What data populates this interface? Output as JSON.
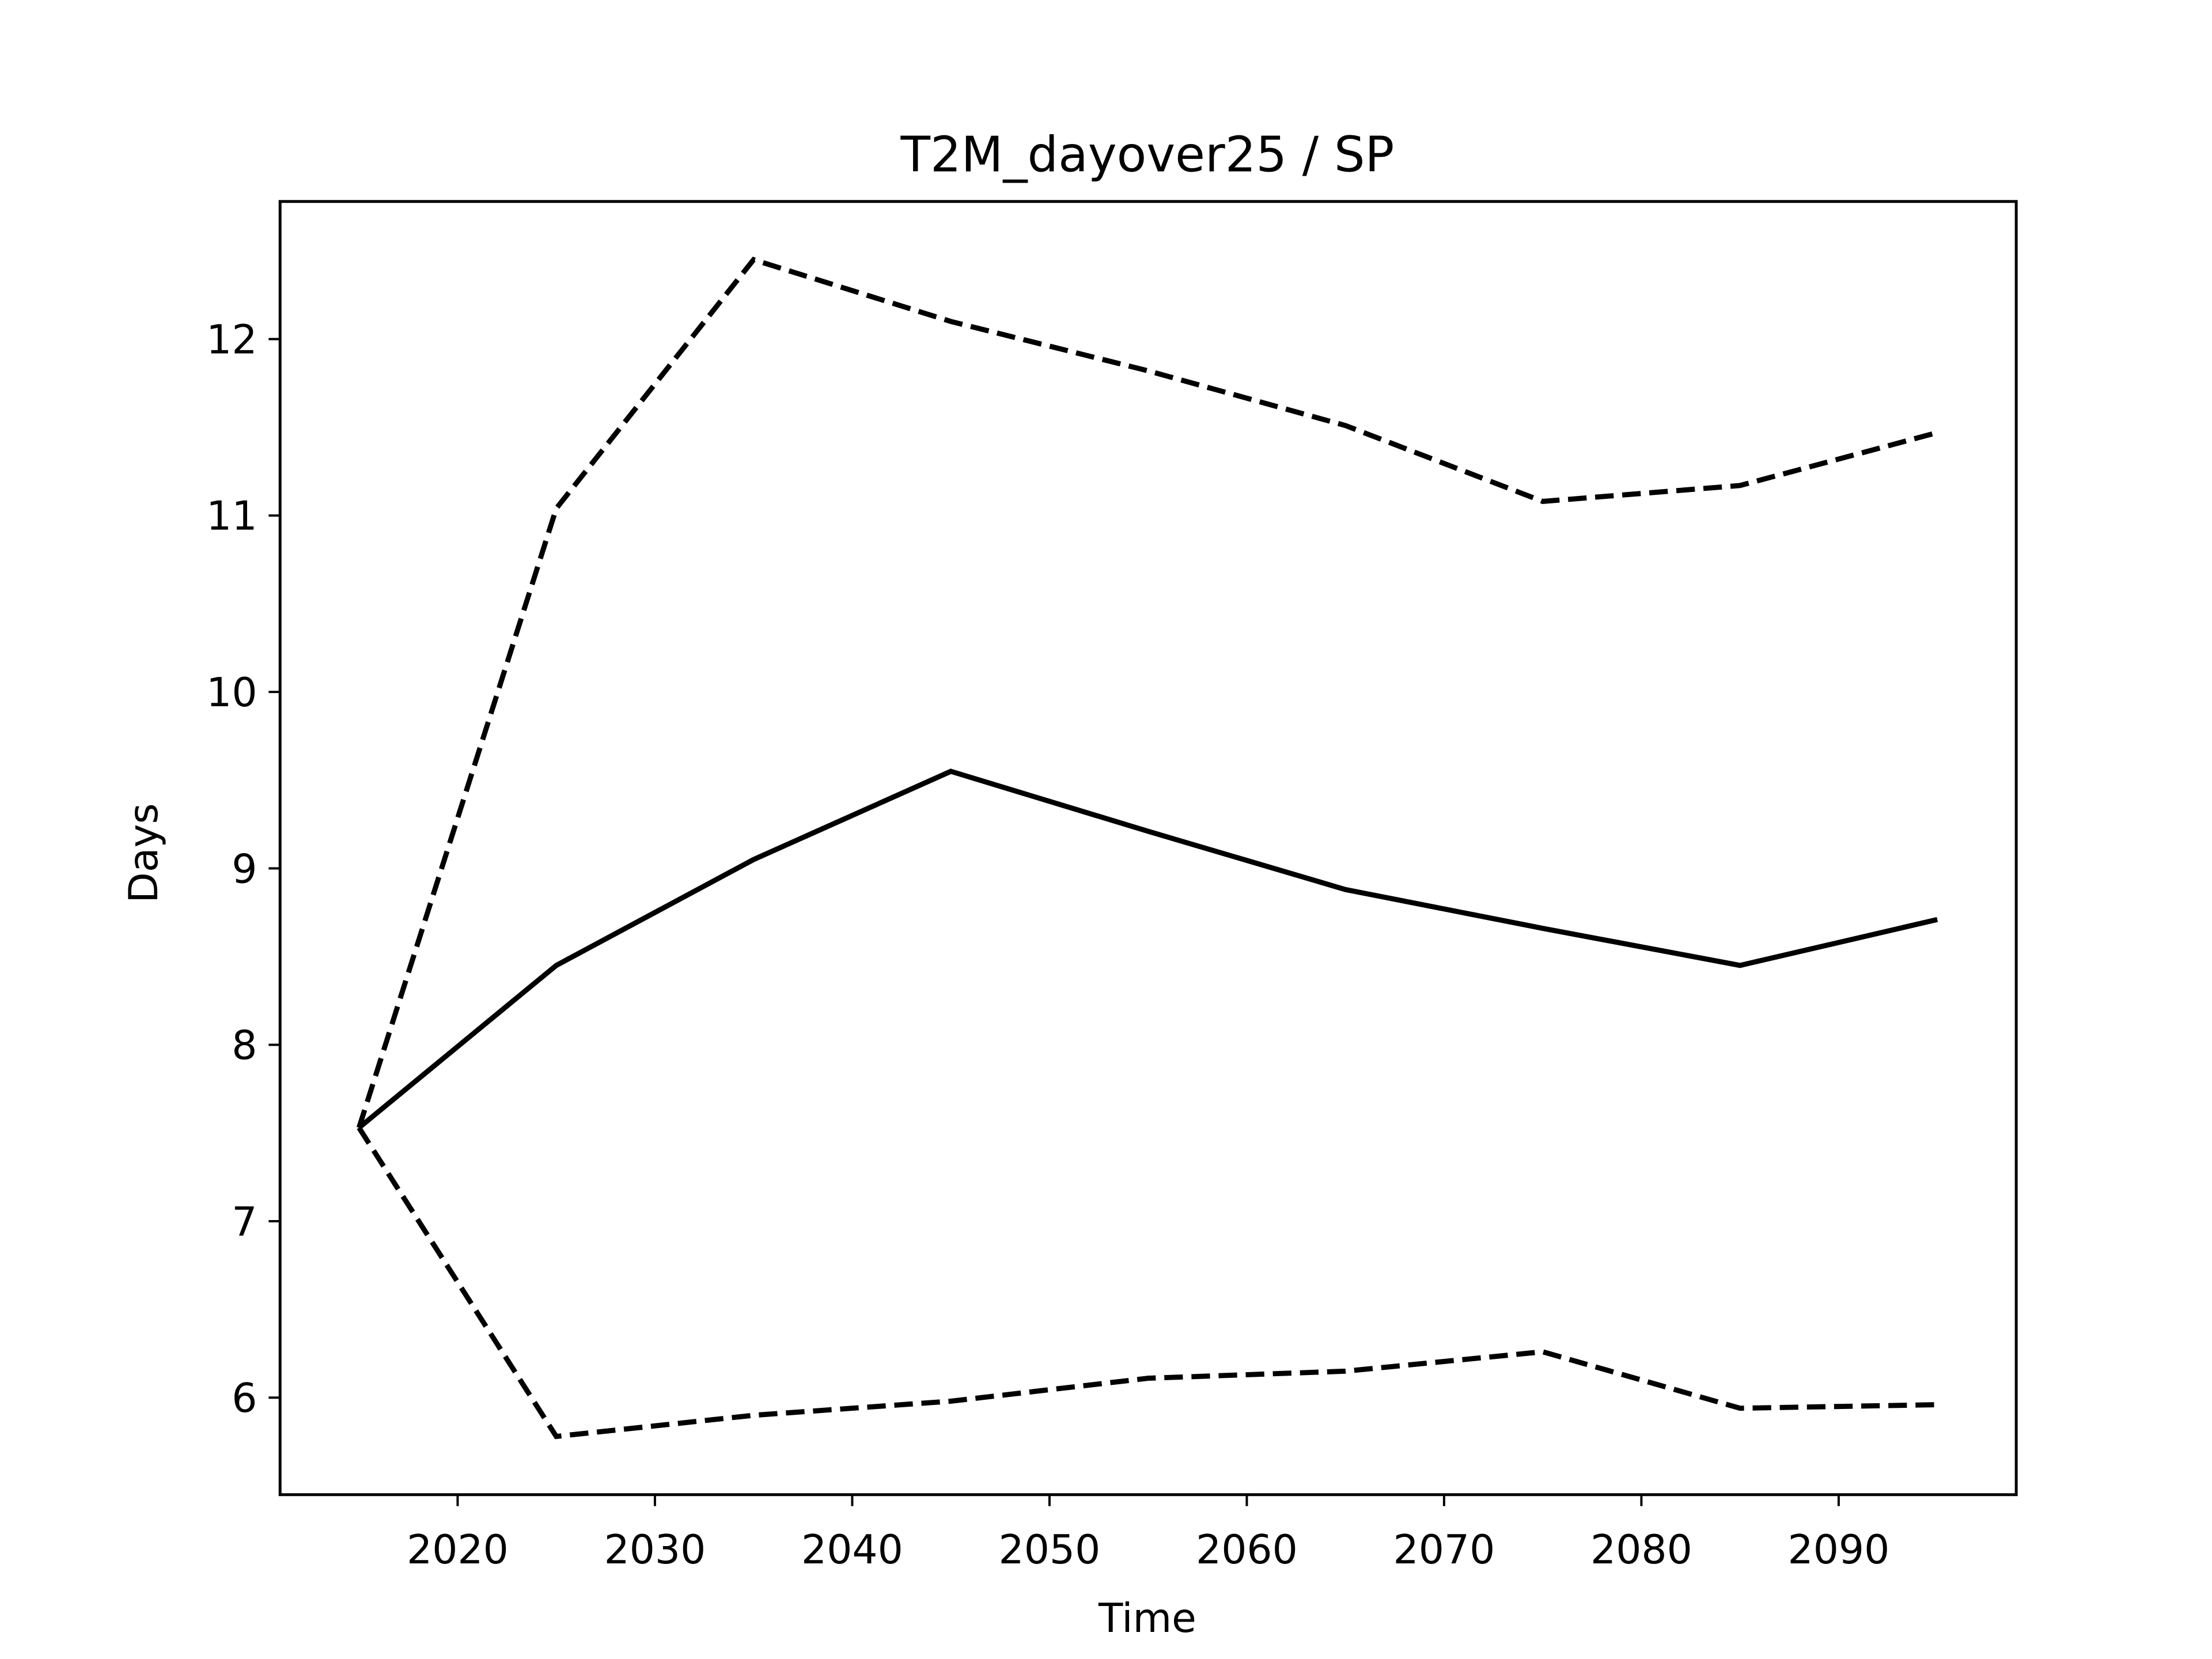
{
  "chart_data": {
    "type": "line",
    "title": "T2M_dayover25 / SP",
    "x_label": "Time",
    "y_label": "Days",
    "x": [
      2015,
      2025,
      2035,
      2045,
      2055,
      2065,
      2075,
      2085,
      2095
    ],
    "series": [
      {
        "color": "#000000",
        "dashed": false,
        "values": [
          7.53,
          8.45,
          9.05,
          9.55,
          9.21,
          8.88,
          8.66,
          8.45,
          8.71
        ]
      },
      {
        "color": "#000000",
        "dashed": true,
        "values": [
          7.53,
          11.04,
          12.45,
          12.1,
          11.82,
          11.51,
          11.08,
          11.17,
          11.47
        ]
      },
      {
        "color": "#000000",
        "dashed": true,
        "values": [
          7.53,
          5.78,
          5.9,
          5.98,
          6.11,
          6.15,
          6.26,
          5.94,
          5.96
        ]
      }
    ],
    "xlim": [
      2011,
      2099
    ],
    "xticks": [
      2020,
      2030,
      2040,
      2050,
      2060,
      2070,
      2080,
      2090
    ],
    "ylim": [
      5.45,
      12.78
    ],
    "yticks": [
      6,
      7,
      8,
      9,
      10,
      11,
      12
    ],
    "grid": false
  }
}
